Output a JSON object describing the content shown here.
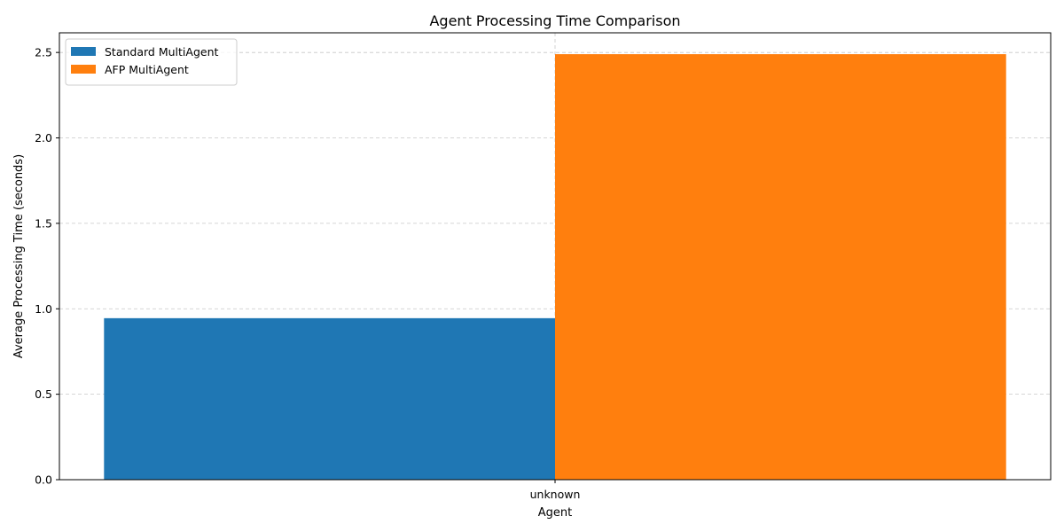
{
  "chart_data": {
    "type": "bar",
    "title": "Agent Processing Time Comparison",
    "xlabel": "Agent",
    "ylabel": "Average Processing Time (seconds)",
    "categories": [
      "unknown"
    ],
    "series": [
      {
        "name": "Standard MultiAgent",
        "values": [
          0.945
        ],
        "color": "#1f77b4"
      },
      {
        "name": "AFP MultiAgent",
        "values": [
          2.49
        ],
        "color": "#ff7f0e"
      }
    ],
    "ylim": [
      0,
      2.615
    ],
    "yticks": [
      0.0,
      0.5,
      1.0,
      1.5,
      2.0,
      2.5
    ],
    "ytick_labels": [
      "0.0",
      "0.5",
      "1.0",
      "1.5",
      "2.0",
      "2.5"
    ],
    "grid": true,
    "legend_position": "top-left"
  }
}
